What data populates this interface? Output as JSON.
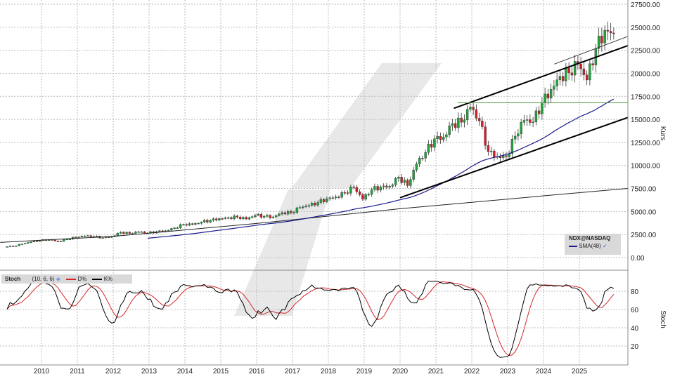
{
  "chart_data": [
    {
      "type": "candlestick",
      "symbol": "NDX@NASDAQ",
      "ylabel": "Kurs",
      "ylim": [
        0,
        27500
      ],
      "yticks": [
        0,
        2500,
        5000,
        7500,
        10000,
        12500,
        15000,
        17500,
        20000,
        22500,
        25000,
        27500
      ],
      "ytick_labels": [
        "0.00",
        "2500.00",
        "5000.00",
        "7500.00",
        "10000.00",
        "12500.00",
        "15000.00",
        "17500.00",
        "20000.00",
        "22500.00",
        "25000.00",
        "27500.00"
      ],
      "xticks": [
        "2010",
        "2011",
        "2012",
        "2013",
        "2014",
        "2015",
        "2016",
        "2017",
        "2018",
        "2019",
        "2020",
        "2021",
        "2022",
        "2023",
        "2024",
        "2025"
      ],
      "grid": true,
      "quarter_closes_from_2008Q4": [
        1211,
        1237,
        1477,
        1700,
        1860,
        1950,
        1740,
        2000,
        2217,
        2338,
        2300,
        2150,
        2278,
        2750,
        2615,
        2800,
        2660,
        2818,
        2910,
        3218,
        3592,
        3596,
        3850,
        4050,
        4236,
        4334,
        4396,
        4181,
        4593,
        4483,
        4417,
        4875,
        4864,
        5436,
        5647,
        5979,
        6396,
        6581,
        7040,
        7627,
        6330,
        7378,
        7671,
        7750,
        8733,
        7813,
        10156,
        11418,
        12888,
        13091,
        14554,
        14689,
        16320,
        14839,
        11503,
        10971,
        10940,
        13181,
        14891,
        14715,
        16825,
        18254,
        19683,
        20060,
        21012,
        19278,
        22679,
        24680,
        24300
      ],
      "series": [
        {
          "name": "SMA(48)",
          "color": "#1a1a8c",
          "period": 48
        }
      ],
      "long_trend_curve": [
        [
          2008.85,
          1650
        ],
        [
          2012,
          2300
        ],
        [
          2016,
          3700
        ],
        [
          2020,
          5300
        ],
        [
          2024,
          6700
        ],
        [
          2026.35,
          7500
        ]
      ],
      "annotations": [
        {
          "type": "trendline",
          "points": [
            [
              2021.5,
              16200
            ],
            [
              2026.35,
              23000
            ]
          ],
          "color": "#000000"
        },
        {
          "type": "trendline",
          "points": [
            [
              2020,
              6500
            ],
            [
              2026.35,
              15200
            ]
          ],
          "color": "#000000"
        },
        {
          "type": "trendline",
          "points": [
            [
              2024.3,
              21000
            ],
            [
              2026.35,
              24000
            ]
          ],
          "color": "#333333"
        },
        {
          "type": "hline",
          "value": 16800,
          "from": 2021.6,
          "color": "#4a9a3a"
        }
      ],
      "legend": {
        "symbol": "NDX@NASDAQ",
        "sma": "SMA(48)"
      }
    },
    {
      "type": "line",
      "title": "Stoch",
      "params": "(10, 6, 6)",
      "ylabel": "Stoch",
      "ylim": [
        0,
        100
      ],
      "yticks": [
        20,
        40,
        60,
        80
      ],
      "series": [
        {
          "name": "D%",
          "color": "#d62728"
        },
        {
          "name": "K%",
          "color": "#000000"
        }
      ]
    }
  ],
  "colors": {
    "up": "#22a33a",
    "down": "#d0202a",
    "grid": "#bbbbbb"
  }
}
